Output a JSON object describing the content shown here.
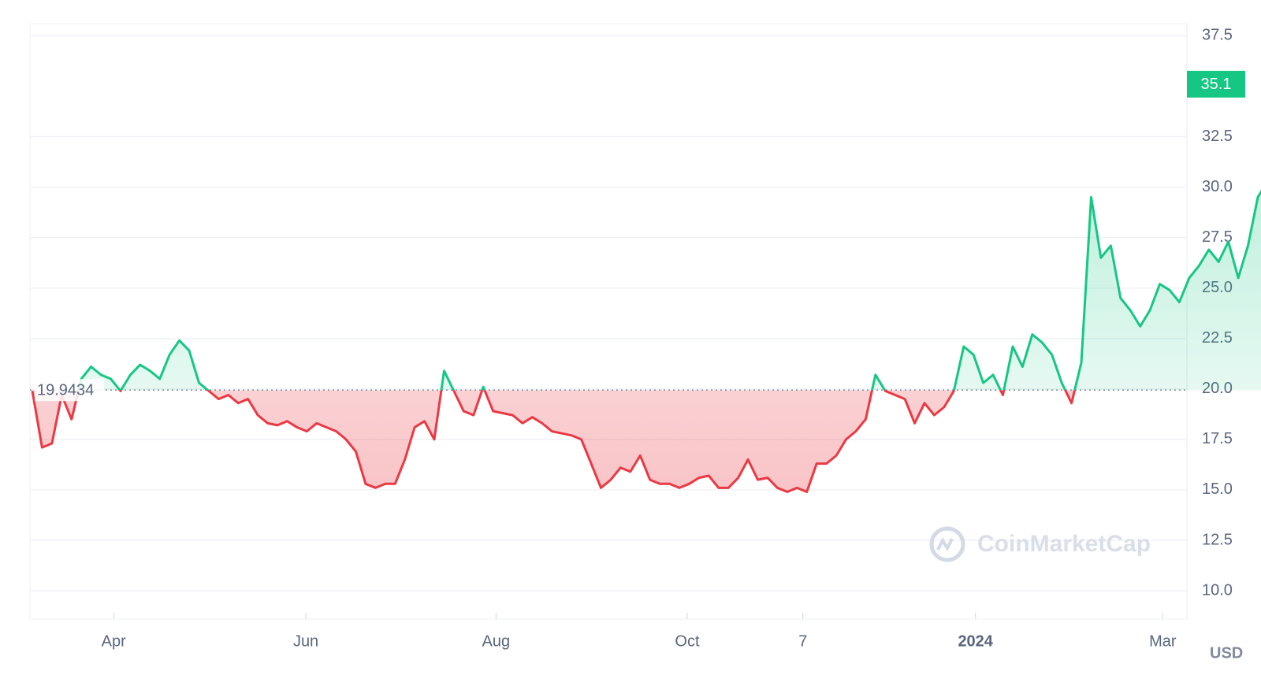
{
  "chart_data": {
    "type": "line",
    "values": [
      19.9,
      17.1,
      17.3,
      19.7,
      18.5,
      20.5,
      21.1,
      20.7,
      20.5,
      19.9,
      20.7,
      21.2,
      20.9,
      20.5,
      21.7,
      22.4,
      21.9,
      20.3,
      19.9,
      19.5,
      19.7,
      19.3,
      19.5,
      18.7,
      18.3,
      18.2,
      18.4,
      18.1,
      17.9,
      18.3,
      18.1,
      17.9,
      17.5,
      16.9,
      15.3,
      15.1,
      15.3,
      15.3,
      16.5,
      18.1,
      18.4,
      17.5,
      20.9,
      19.9,
      18.9,
      18.7,
      20.1,
      18.9,
      18.8,
      18.7,
      18.3,
      18.6,
      18.3,
      17.9,
      17.8,
      17.7,
      17.5,
      16.3,
      15.1,
      15.5,
      16.1,
      15.9,
      16.7,
      15.5,
      15.3,
      15.3,
      15.1,
      15.3,
      15.6,
      15.7,
      15.1,
      15.1,
      15.6,
      16.5,
      15.5,
      15.6,
      15.1,
      14.9,
      15.1,
      14.9,
      16.3,
      16.3,
      16.7,
      17.5,
      17.9,
      18.5,
      20.7,
      19.9,
      19.7,
      19.5,
      18.3,
      19.3,
      18.7,
      19.1,
      19.9,
      22.1,
      21.7,
      20.3,
      20.7,
      19.7,
      22.1,
      21.1,
      22.7,
      22.3,
      21.7,
      20.3,
      19.3,
      21.3,
      29.5,
      26.5,
      27.1,
      24.5,
      23.9,
      23.1,
      23.9,
      25.2,
      24.9,
      24.3,
      25.5,
      26.1,
      26.9,
      26.3,
      27.3,
      25.5,
      27.1,
      29.5,
      30.3,
      35.1
    ],
    "baseline": 19.9434,
    "up_color": "#16c784",
    "down_color": "#ea3943",
    "xlim": [
      0,
      116
    ],
    "xticks": [
      {
        "value": 8.3,
        "label": "Apr"
      },
      {
        "value": 27.9,
        "label": "Jun"
      },
      {
        "value": 47.3,
        "label": "Aug"
      },
      {
        "value": 66.8,
        "label": "Oct"
      },
      {
        "value": 78.6,
        "label": "7"
      },
      {
        "value": 96.2,
        "label": "2024",
        "emphasis": true
      },
      {
        "value": 115.3,
        "label": "Mar"
      }
    ],
    "ylim": [
      9.3,
      38.1
    ],
    "yticks": [
      {
        "value": 10,
        "label": "10.0"
      },
      12.5,
      {
        "value": 15,
        "label": "15.0"
      },
      17.5,
      {
        "value": 20,
        "label": "20.0"
      },
      22.5,
      {
        "value": 25,
        "label": "25.0"
      },
      27.5,
      {
        "value": 30,
        "label": "30.0"
      },
      32.5,
      37.5
    ],
    "grid": true,
    "currency": "USD",
    "watermark": "CoinMarketCap"
  }
}
